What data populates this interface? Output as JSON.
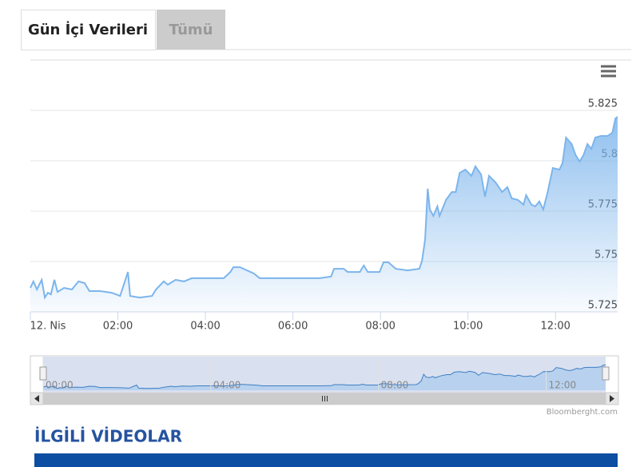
{
  "tabs": [
    "Gün İçi Verileri",
    "Tümü"
  ],
  "chart_data": {
    "type": "area",
    "color": "#7cb5ec",
    "grid": true,
    "x": [
      0,
      0.07,
      0.15,
      0.26,
      0.33,
      0.4,
      0.47,
      0.55,
      0.62,
      0.77,
      0.95,
      1.1,
      1.24,
      1.35,
      1.59,
      1.86,
      2.05,
      2.16,
      2.23,
      2.28,
      2.5,
      2.78,
      2.87,
      3.05,
      3.14,
      3.32,
      3.51,
      3.69,
      4.05,
      4.42,
      4.57,
      4.64,
      4.79,
      5.11,
      5.24,
      5.88,
      6.61,
      6.87,
      6.94,
      7.16,
      7.25,
      7.53,
      7.62,
      7.71,
      7.98,
      8.07,
      8.18,
      8.35,
      8.62,
      8.89,
      8.95,
      9.02,
      9.08,
      9.13,
      9.21,
      9.3,
      9.35,
      9.5,
      9.63,
      9.72,
      9.81,
      9.94,
      10.08,
      10.17,
      10.3,
      10.39,
      10.48,
      10.63,
      10.78,
      10.9,
      11.0,
      11.14,
      11.27,
      11.33,
      11.45,
      11.54,
      11.63,
      11.72,
      11.82,
      11.94,
      12.09,
      12.16,
      12.24,
      12.37,
      12.46,
      12.55,
      12.64,
      12.73,
      12.82,
      12.91,
      13.04,
      13.19,
      13.3,
      13.37,
      13.42
    ],
    "values": [
      5.7369,
      5.7401,
      5.7361,
      5.7409,
      5.7321,
      5.7345,
      5.7337,
      5.7409,
      5.7349,
      5.7369,
      5.7361,
      5.7401,
      5.7393,
      5.7353,
      5.7353,
      5.7345,
      5.7329,
      5.7401,
      5.7448,
      5.7329,
      5.7321,
      5.7329,
      5.7361,
      5.7401,
      5.7385,
      5.7409,
      5.7401,
      5.7417,
      5.7417,
      5.7417,
      5.7448,
      5.7472,
      5.7472,
      5.744,
      5.7417,
      5.7417,
      5.7417,
      5.7425,
      5.7464,
      5.7464,
      5.7448,
      5.7448,
      5.748,
      5.7448,
      5.7448,
      5.7496,
      5.7496,
      5.7464,
      5.7456,
      5.7464,
      5.7504,
      5.7607,
      5.7861,
      5.7758,
      5.7726,
      5.7774,
      5.7726,
      5.7806,
      5.7845,
      5.7845,
      5.794,
      5.7956,
      5.7925,
      5.7972,
      5.7932,
      5.7821,
      5.7925,
      5.7893,
      5.7845,
      5.7869,
      5.7813,
      5.7806,
      5.7782,
      5.7829,
      5.7782,
      5.7774,
      5.7798,
      5.7758,
      5.7845,
      5.7964,
      5.7956,
      5.7988,
      5.8115,
      5.8083,
      5.8028,
      5.7996,
      5.8028,
      5.8083,
      5.8059,
      5.8115,
      5.8123,
      5.8123,
      5.8139,
      5.821,
      5.8218
    ],
    "xlim": [
      0,
      13.42
    ],
    "xticks": [
      {
        "value": 0,
        "label": "12. Nis"
      },
      {
        "value": 2,
        "label": "02:00"
      },
      {
        "value": 4,
        "label": "04:00"
      },
      {
        "value": 6,
        "label": "06:00"
      },
      {
        "value": 8,
        "label": "08:00"
      },
      {
        "value": 10,
        "label": "10:00"
      },
      {
        "value": 12,
        "label": "12:00"
      }
    ],
    "ylim": [
      5.725,
      5.85
    ],
    "yticks": [
      5.725,
      5.75,
      5.775,
      5.8,
      5.825
    ],
    "navigator_xticks": [
      {
        "value": 0,
        "label": "00:00"
      },
      {
        "value": 4,
        "label": "04:00"
      },
      {
        "value": 8,
        "label": "08:00"
      },
      {
        "value": 12,
        "label": "12:00"
      }
    ]
  },
  "credit": "Bloomberght.com",
  "section_title": "İLGİLİ VİDEOLAR"
}
